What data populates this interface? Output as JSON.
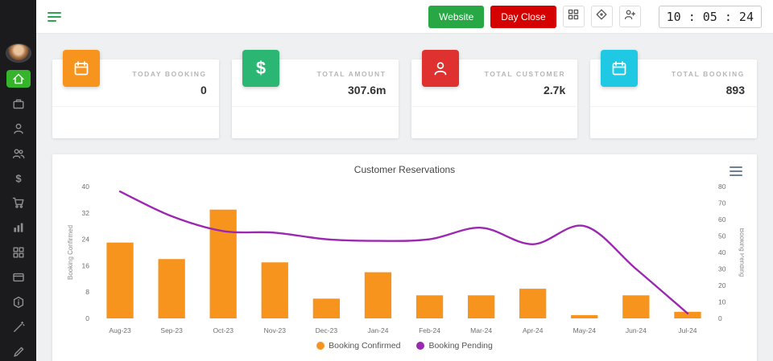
{
  "topbar": {
    "website_button": "Website",
    "day_close_button": "Day Close",
    "clock": "10 : 05 : 24",
    "icons": [
      "menu-icon",
      "grid-icon",
      "compass-icon",
      "user-plus-icon"
    ]
  },
  "sidebar": {
    "icons": [
      "user-avatar",
      "home-icon",
      "shop-icon",
      "customer-icon",
      "group-icon",
      "finance-icon",
      "cart-icon",
      "reports-icon",
      "apps-icon",
      "card-icon",
      "package-icon",
      "wand-icon",
      "pen-icon"
    ]
  },
  "stat_cards": [
    {
      "label": "TODAY BOOKING",
      "value": "0",
      "icon": "calendar-icon",
      "color": "#f7941e"
    },
    {
      "label": "TOTAL AMOUNT",
      "value": "307.6m",
      "icon": "dollar-icon",
      "color": "#2bb673"
    },
    {
      "label": "TOTAL CUSTOMER",
      "value": "2.7k",
      "icon": "person-icon",
      "color": "#e03131"
    },
    {
      "label": "TOTAL BOOKING",
      "value": "893",
      "icon": "calendar-icon",
      "color": "#1fc8e3"
    }
  ],
  "chart_data": {
    "type": "combo",
    "title": "Customer Reservations",
    "categories": [
      "Aug-23",
      "Sep-23",
      "Oct-23",
      "Nov-23",
      "Dec-23",
      "Jan-24",
      "Feb-24",
      "Mar-24",
      "Apr-24",
      "May-24",
      "Jun-24",
      "Jul-24"
    ],
    "series": [
      {
        "name": "Booking Confirmed",
        "type": "bar",
        "axis": "left",
        "color": "#f7941e",
        "values": [
          23,
          18,
          33,
          17,
          6,
          14,
          7,
          7,
          9,
          1,
          7,
          2
        ]
      },
      {
        "name": "Booking Pending",
        "type": "line",
        "axis": "right",
        "color": "#9c27b0",
        "values": [
          77,
          62,
          53,
          52,
          48,
          47,
          48,
          55,
          45,
          56,
          30,
          3
        ]
      }
    ],
    "left_axis": {
      "label": "Booking Confirmed",
      "min": 0,
      "max": 40,
      "ticks": [
        0,
        8,
        16,
        24,
        32,
        40
      ]
    },
    "right_axis": {
      "label": "Booking Pending",
      "min": 0,
      "max": 80,
      "ticks": [
        0,
        10,
        20,
        30,
        40,
        50,
        60,
        70,
        80
      ]
    },
    "legend_position": "bottom",
    "grid": false
  }
}
